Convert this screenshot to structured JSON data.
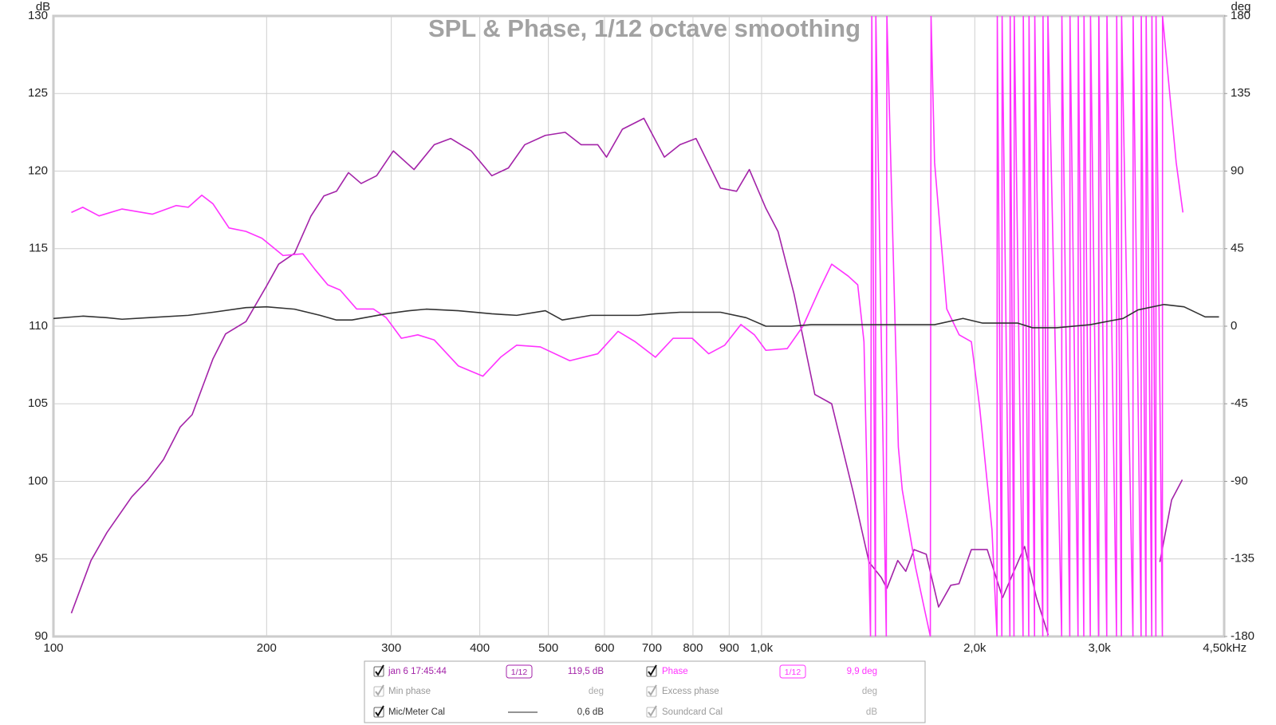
{
  "chart_data": {
    "type": "line",
    "title": "SPL & Phase, 1/12 octave smoothing",
    "y_label": "dB",
    "y2_label": "deg",
    "x_label": "Hz",
    "log_x": true,
    "grid": true,
    "xlim": [
      100,
      4500
    ],
    "xticks": [
      100,
      200,
      300,
      400,
      500,
      600,
      700,
      800,
      900,
      {
        "value": 1000,
        "label": "1,0k"
      },
      {
        "value": 2000,
        "label": "2,0k"
      },
      {
        "value": 3000,
        "label": "3,0k"
      },
      {
        "value": 4500,
        "label": "4,50k"
      }
    ],
    "ylim": [
      90,
      130
    ],
    "yticks": [
      90,
      95,
      100,
      105,
      110,
      115,
      120,
      125,
      130
    ],
    "y2lim": [
      -180,
      180
    ],
    "y2ticks": [
      -180,
      -135,
      -90,
      -45,
      0,
      45,
      90,
      135,
      180
    ],
    "series": [
      {
        "name": "jan 6 17:45:44",
        "color": "#a323a8",
        "axis": "y",
        "smoothing": "1/12",
        "readout": "119,5 dB",
        "x": [
          106,
          113,
          119,
          129,
          136,
          143,
          151,
          157,
          168,
          175,
          187,
          200,
          208,
          219,
          231,
          241,
          251,
          261,
          272,
          286,
          302,
          323,
          345,
          364,
          389,
          416,
          439,
          463,
          495,
          528,
          556,
          587,
          604,
          636,
          682,
          729,
          767,
          808,
          875,
          922,
          961,
          1014,
          1055,
          1111,
          1189,
          1256,
          1347,
          1418,
          1476,
          1503,
          1557,
          1598,
          1642,
          1708,
          1778,
          1850,
          1900,
          1978,
          2083,
          2189,
          2352,
          2444,
          2540,
          2700,
          3651,
          3793,
          3927
        ],
        "values": [
          91.5,
          94.9,
          96.7,
          99.0,
          100.1,
          101.4,
          103.5,
          104.3,
          107.9,
          109.5,
          110.3,
          112.6,
          114.0,
          114.7,
          117.1,
          118.4,
          118.7,
          119.9,
          119.2,
          119.7,
          121.3,
          120.1,
          121.7,
          122.1,
          121.3,
          119.7,
          120.2,
          121.7,
          122.3,
          122.5,
          121.7,
          121.7,
          120.9,
          122.7,
          123.4,
          120.9,
          121.7,
          122.1,
          118.9,
          118.7,
          120.1,
          117.6,
          116.1,
          112.1,
          105.6,
          105.0,
          99.3,
          94.8,
          93.8,
          93.1,
          94.9,
          94.2,
          95.6,
          95.3,
          91.9,
          93.3,
          93.4,
          95.6,
          95.6,
          92.5,
          95.8,
          92.5,
          90.1,
          null,
          94.8,
          98.8,
          100.1
        ]
      },
      {
        "name": "Phase",
        "color": "#ff33ff",
        "axis": "y2",
        "smoothing": "1/12",
        "readout": "9,9 deg",
        "x": [
          106,
          110,
          116,
          125,
          138,
          149,
          155,
          162,
          168,
          177,
          187,
          197,
          211,
          225,
          234,
          244,
          254,
          268,
          283,
          295,
          310,
          327,
          345,
          373,
          404,
          428,
          451,
          487,
          536,
          587,
          627,
          663,
          708,
          750,
          798,
          842,
          887,
          935,
          977,
          1014,
          1087,
          1144,
          1206,
          1256,
          1326,
          1367,
          1395,
          1425,
          1431,
          1448,
          1450,
          1500,
          1503,
          1560,
          1580,
          1650,
          1700,
          1731,
          1735,
          1755,
          1826,
          1901,
          1978,
          2032,
          2115,
          2150,
          2152,
          2184,
          2186,
          2242,
          2244,
          2272,
          2274,
          2340,
          2342,
          2384,
          2386,
          2429,
          2431,
          2495,
          2497,
          2535,
          2537,
          2653,
          2655,
          2724,
          2726,
          2798,
          2800,
          2851,
          2853,
          2912,
          2914,
          2991,
          2993,
          3072,
          3074,
          3171,
          3173,
          3222,
          3224,
          3345,
          3347,
          3435,
          3437,
          3490,
          3492,
          3556,
          3558,
          3604,
          3606,
          3681,
          3683,
          3760,
          3850,
          3935
        ],
        "values": [
          66,
          69,
          64,
          68,
          65,
          70,
          69,
          76,
          71,
          57,
          55,
          51,
          41,
          42,
          33,
          24,
          21,
          10,
          10,
          5,
          -7,
          -5,
          -8,
          -23,
          -29,
          -18,
          -11,
          -12,
          -20,
          -16,
          -3,
          -9,
          -18,
          -7,
          -7,
          -16,
          -11,
          1,
          -5,
          -14,
          -13,
          0,
          21,
          36,
          29,
          24,
          -9,
          -180,
          180,
          -180,
          180,
          -180,
          180,
          -70,
          -95,
          -140,
          -165,
          -180,
          180,
          95,
          10,
          -5,
          -9,
          -47,
          -118,
          -180,
          180,
          -180,
          180,
          -180,
          180,
          -180,
          180,
          -180,
          180,
          -180,
          180,
          -180,
          180,
          -180,
          180,
          -180,
          180,
          -180,
          180,
          -180,
          180,
          -180,
          180,
          -180,
          180,
          -180,
          180,
          -180,
          180,
          -180,
          180,
          -180,
          180,
          -180,
          180,
          -180,
          180,
          -180,
          180,
          -180,
          180,
          -180,
          180,
          -180,
          180,
          -180,
          180,
          140,
          95,
          66
        ]
      },
      {
        "name": "Mic/Meter Cal",
        "color": "#333333",
        "axis": "y",
        "readout": "0,6 dB",
        "x": [
          100,
          110,
          119,
          125,
          136,
          155,
          168,
          187,
          200,
          219,
          238,
          251,
          264,
          295,
          318,
          336,
          373,
          416,
          451,
          495,
          523,
          574,
          670,
          708,
          767,
          875,
          951,
          1014,
          1102,
          1176,
          1240,
          1577,
          1755,
          1925,
          2052,
          2300,
          2413,
          2610,
          2912,
          3239,
          3400,
          3700,
          3950,
          4230,
          4425
        ],
        "values": [
          110.5,
          110.65,
          110.55,
          110.45,
          110.55,
          110.7,
          110.9,
          111.2,
          111.25,
          111.1,
          110.7,
          110.4,
          110.4,
          110.8,
          111.0,
          111.1,
          111.0,
          110.8,
          110.7,
          111.0,
          110.4,
          110.7,
          110.7,
          110.8,
          110.9,
          110.9,
          110.55,
          110.0,
          110.0,
          110.1,
          110.1,
          110.1,
          110.1,
          110.5,
          110.2,
          110.2,
          109.9,
          109.9,
          110.1,
          110.5,
          111.05,
          111.4,
          111.25,
          110.6,
          110.6
        ]
      }
    ],
    "legend_extra": [
      {
        "name": "Min phase",
        "unit": "deg"
      },
      {
        "name": "Excess phase",
        "unit": "deg"
      },
      {
        "name": "Soundcard Cal",
        "unit": "dB"
      }
    ]
  }
}
